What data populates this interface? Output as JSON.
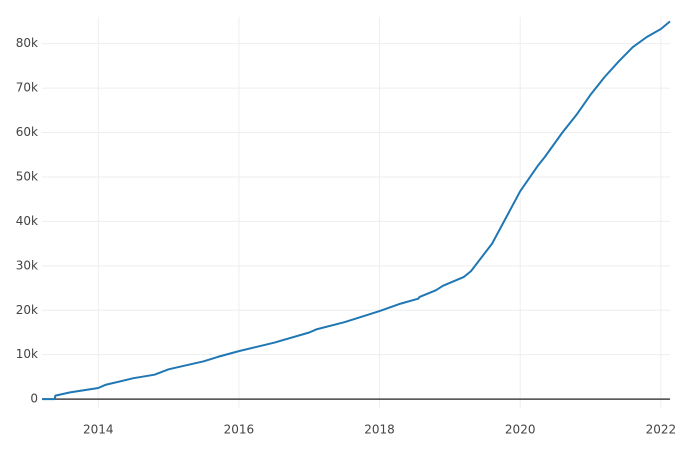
{
  "chart_data": {
    "type": "line",
    "x": [
      2013.2,
      2013.38,
      2013.39,
      2013.6,
      2014.0,
      2014.1,
      2014.5,
      2014.8,
      2015.0,
      2015.5,
      2015.7,
      2016.0,
      2016.5,
      2017.0,
      2017.1,
      2017.5,
      2018.0,
      2018.3,
      2018.55,
      2018.57,
      2018.8,
      2018.9,
      2019.2,
      2019.3,
      2019.6,
      2020.0,
      2020.25,
      2020.35,
      2020.6,
      2020.8,
      2021.0,
      2021.2,
      2021.4,
      2021.6,
      2021.8,
      2022.0,
      2022.13
    ],
    "values": [
      0,
      0,
      800,
      1500,
      2500,
      3200,
      4700,
      5500,
      6700,
      8500,
      9500,
      10800,
      12700,
      15000,
      15700,
      17300,
      19800,
      21500,
      22600,
      23000,
      24500,
      25500,
      27500,
      28800,
      35000,
      46800,
      52500,
      54500,
      60000,
      64000,
      68500,
      72500,
      76000,
      79200,
      81500,
      83300,
      85000
    ],
    "color": "#1f77b4",
    "xlim": [
      2013.2,
      2022.13
    ],
    "xticks": [
      2014,
      2016,
      2018,
      2020,
      2022
    ],
    "ylim": [
      -2000,
      86000
    ],
    "yticks": [
      0,
      {
        "value": 10000,
        "label": "10k"
      },
      {
        "value": 20000,
        "label": "20k"
      },
      {
        "value": 30000,
        "label": "30k"
      },
      {
        "value": 40000,
        "label": "40k"
      },
      {
        "value": 50000,
        "label": "50k"
      },
      {
        "value": 60000,
        "label": "60k"
      },
      {
        "value": 70000,
        "label": "70k"
      },
      {
        "value": 80000,
        "label": "80k"
      }
    ],
    "grid": true
  }
}
